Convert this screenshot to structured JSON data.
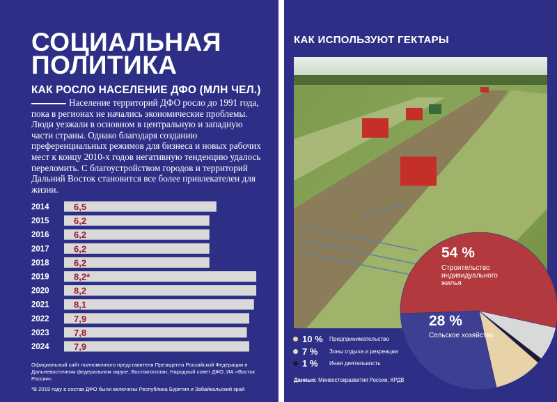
{
  "page": {
    "title_lines": [
      "СОЦИАЛЬНАЯ",
      "ПОЛИТИКА"
    ],
    "lead": "Население территорий ДФО росло до 1991 года, пока в регионах не начались экономические проблемы. Люди уезжали в основном в центральную и западную части страны. Однако благодаря созданию преференциальных режимов для бизнеса и новых рабочих мест к концу 2010-х годов негативную тенденцию удалось переломить. С благоустройством городов и территорий Дальний Восток становится все более привлекателен для жизни.",
    "source_left": "Официальный сайт полномочного представителя Президента Российской Федерации в Дальневосточном федеральном округе, Востокгосплан, Народный совет ДФО, ИА «Восток России»",
    "note_left": "*В 2019 году в состав ДФО были включены Республика Бурятия и Забайкальский край",
    "source_right_label": "Данные:",
    "source_right": "Минвостокразвития России, КРДВ"
  },
  "chart_data": [
    {
      "type": "hbar",
      "title": "КАК РОСЛО НАСЕЛЕНИЕ ДФО (МЛН ЧЕЛ.)",
      "categories": [
        "2014",
        "2015",
        "2016",
        "2017",
        "2018",
        "2019",
        "2020",
        "2021",
        "2022",
        "2023",
        "2024"
      ],
      "values": [
        6.5,
        6.2,
        6.2,
        6.2,
        6.2,
        8.2,
        8.2,
        8.1,
        7.9,
        7.8,
        7.9
      ],
      "value_labels": [
        "6,5",
        "6,2",
        "6,2",
        "6,2",
        "6,2",
        "8,2*",
        "8,2",
        "8,1",
        "7,9",
        "7,8",
        "7,9"
      ],
      "color": "#d9d9d9",
      "label_color": "#9e1b2d",
      "xlim": [
        0,
        9
      ]
    },
    {
      "type": "pie",
      "title": "КАК ИСПОЛЬЗУЮТ ГЕКТАРЫ",
      "categories": [
        "Строительство индивидуального жилья",
        "Зоны отдыха и рекреации",
        "Иная деятельность",
        "Предпринимательство",
        "Сельское хозяйство"
      ],
      "values": [
        54,
        7,
        1,
        10,
        28
      ],
      "value_labels": [
        "54 %",
        "7 %",
        "1 %",
        "10 %",
        "28 %"
      ],
      "colors": [
        "#b23a3e",
        "#d9d9d9",
        "#1b1b2a",
        "#e8d3a8",
        "#3d3f93"
      ]
    }
  ]
}
